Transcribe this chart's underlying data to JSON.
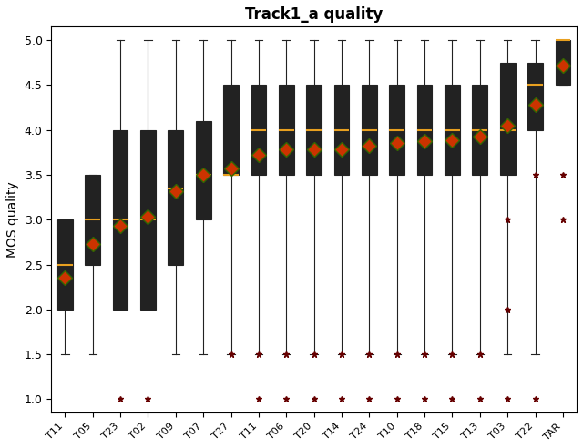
{
  "title": "Track1_a quality",
  "ylabel": "MOS quality",
  "xlabels": [
    "T11",
    "T05",
    "T23",
    "T02",
    "T09",
    "T07",
    "T27",
    "T11",
    "T06",
    "T20",
    "T14",
    "T24",
    "T10",
    "T18",
    "T15",
    "T13",
    "T03",
    "T22",
    "TAR"
  ],
  "ylim": [
    0.85,
    5.15
  ],
  "yticks": [
    1.0,
    1.5,
    2.0,
    2.5,
    3.0,
    3.5,
    4.0,
    4.5,
    5.0
  ],
  "box_facecolor": "#8080e0",
  "box_edgecolor": "#222222",
  "median_color": "#e8a020",
  "mean_marker": "D",
  "mean_facecolor": "#cc3300",
  "mean_edgecolor": "#336600",
  "flier_marker": "*",
  "flier_color": "#660000",
  "figsize": [
    6.4,
    4.92
  ],
  "dpi": 100,
  "boxes": [
    {
      "q1": 2.0,
      "median": 2.5,
      "q3": 3.0,
      "mean": 2.35,
      "whislo": 1.5,
      "whishi": 3.0,
      "fliers": []
    },
    {
      "q1": 2.5,
      "median": 3.0,
      "q3": 3.5,
      "mean": 2.73,
      "whislo": 1.5,
      "whishi": 3.5,
      "fliers": []
    },
    {
      "q1": 2.0,
      "median": 3.0,
      "q3": 4.0,
      "mean": 2.93,
      "whislo": 2.0,
      "whishi": 5.0,
      "fliers": [
        1.0
      ]
    },
    {
      "q1": 2.0,
      "median": 3.0,
      "q3": 4.0,
      "mean": 3.03,
      "whislo": 2.0,
      "whishi": 5.0,
      "fliers": [
        1.0
      ]
    },
    {
      "q1": 2.5,
      "median": 3.35,
      "q3": 4.0,
      "mean": 3.32,
      "whislo": 1.5,
      "whishi": 5.0,
      "fliers": []
    },
    {
      "q1": 3.0,
      "median": 3.5,
      "q3": 4.1,
      "mean": 3.5,
      "whislo": 1.5,
      "whishi": 5.0,
      "fliers": []
    },
    {
      "q1": 3.5,
      "median": 3.5,
      "q3": 4.5,
      "mean": 3.57,
      "whislo": 1.5,
      "whishi": 5.0,
      "fliers": [
        1.5
      ]
    },
    {
      "q1": 3.5,
      "median": 4.0,
      "q3": 4.5,
      "mean": 3.72,
      "whislo": 1.5,
      "whishi": 5.0,
      "fliers": [
        1.0,
        1.5
      ]
    },
    {
      "q1": 3.5,
      "median": 4.0,
      "q3": 4.5,
      "mean": 3.78,
      "whislo": 1.5,
      "whishi": 5.0,
      "fliers": [
        1.0,
        1.5
      ]
    },
    {
      "q1": 3.5,
      "median": 4.0,
      "q3": 4.5,
      "mean": 3.78,
      "whislo": 1.5,
      "whishi": 5.0,
      "fliers": [
        1.0,
        1.5
      ]
    },
    {
      "q1": 3.5,
      "median": 4.0,
      "q3": 4.5,
      "mean": 3.78,
      "whislo": 1.5,
      "whishi": 5.0,
      "fliers": [
        1.0,
        1.5
      ]
    },
    {
      "q1": 3.5,
      "median": 4.0,
      "q3": 4.5,
      "mean": 3.82,
      "whislo": 1.5,
      "whishi": 5.0,
      "fliers": [
        1.0,
        1.5
      ]
    },
    {
      "q1": 3.5,
      "median": 4.0,
      "q3": 4.5,
      "mean": 3.85,
      "whislo": 1.5,
      "whishi": 5.0,
      "fliers": [
        1.0,
        1.5
      ]
    },
    {
      "q1": 3.5,
      "median": 4.0,
      "q3": 4.5,
      "mean": 3.87,
      "whislo": 1.5,
      "whishi": 5.0,
      "fliers": [
        1.0,
        1.5
      ]
    },
    {
      "q1": 3.5,
      "median": 4.0,
      "q3": 4.5,
      "mean": 3.88,
      "whislo": 1.5,
      "whishi": 5.0,
      "fliers": [
        1.0,
        1.5
      ]
    },
    {
      "q1": 3.5,
      "median": 4.0,
      "q3": 4.5,
      "mean": 3.93,
      "whislo": 1.5,
      "whishi": 5.0,
      "fliers": [
        1.0,
        1.5
      ]
    },
    {
      "q1": 3.5,
      "median": 4.0,
      "q3": 4.75,
      "mean": 4.05,
      "whislo": 1.5,
      "whishi": 5.0,
      "fliers": [
        1.0,
        2.0,
        3.0
      ]
    },
    {
      "q1": 4.0,
      "median": 4.5,
      "q3": 4.75,
      "mean": 4.28,
      "whislo": 1.5,
      "whishi": 5.0,
      "fliers": [
        1.0,
        3.5
      ]
    },
    {
      "q1": 4.5,
      "median": 5.0,
      "q3": 5.0,
      "mean": 4.72,
      "whislo": 4.5,
      "whishi": 5.0,
      "fliers": [
        3.5,
        3.0
      ]
    }
  ]
}
